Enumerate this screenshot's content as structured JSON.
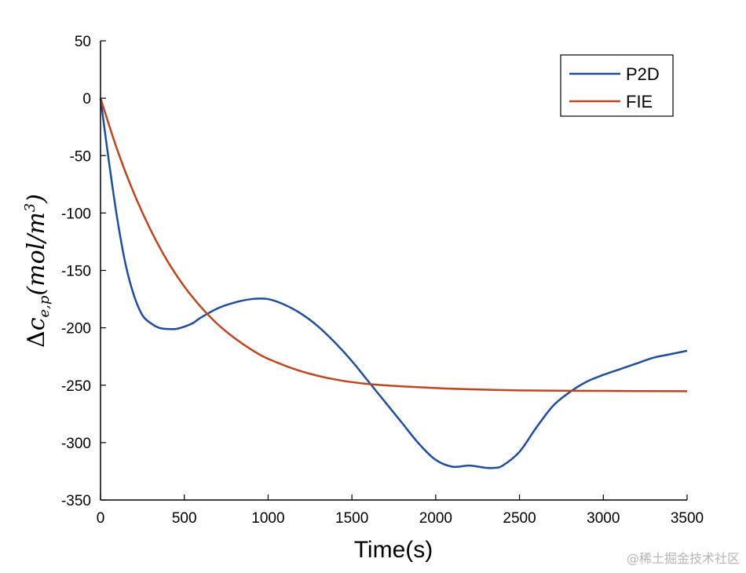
{
  "chart_data": {
    "type": "line",
    "xlabel": "Time(s)",
    "ylabel": {
      "delta": "Δ",
      "var": "c",
      "sub": "e,p",
      "unit_open": "(mol/m",
      "exp": "3",
      "unit_close": ")"
    },
    "xlim": [
      0,
      3500
    ],
    "ylim": [
      -350,
      50
    ],
    "xticks": [
      0,
      500,
      1000,
      1500,
      2000,
      2500,
      3000,
      3500
    ],
    "yticks": [
      -350,
      -300,
      -250,
      -200,
      -150,
      -100,
      -50,
      0,
      50
    ],
    "legend_position": "top-right",
    "series": [
      {
        "name": "P2D",
        "color": "#1f4ea1",
        "x": [
          0,
          50,
          100,
          150,
          200,
          250,
          300,
          350,
          400,
          450,
          500,
          550,
          600,
          700,
          800,
          900,
          1000,
          1100,
          1200,
          1300,
          1400,
          1500,
          1600,
          1700,
          1800,
          1900,
          2000,
          2100,
          2200,
          2300,
          2350,
          2400,
          2500,
          2600,
          2700,
          2800,
          2900,
          3000,
          3100,
          3200,
          3300,
          3400,
          3500
        ],
        "y": [
          0,
          -55,
          -105,
          -145,
          -172,
          -189,
          -196,
          -200,
          -201,
          -201,
          -199,
          -196,
          -191,
          -183,
          -178,
          -175,
          -175,
          -180,
          -188,
          -199,
          -213,
          -229,
          -247,
          -265,
          -283,
          -301,
          -315,
          -321,
          -320,
          -322,
          -322,
          -320,
          -308,
          -287,
          -268,
          -256,
          -247,
          -241,
          -236,
          -231,
          -226,
          -223,
          -220
        ]
      },
      {
        "name": "FIE",
        "color": "#c0441f",
        "x": [
          0,
          100,
          200,
          300,
          400,
          500,
          600,
          700,
          800,
          900,
          1000,
          1200,
          1400,
          1600,
          1800,
          2000,
          2200,
          2500,
          3000,
          3500
        ],
        "y": [
          0,
          -45,
          -83,
          -115,
          -142,
          -164,
          -182,
          -197,
          -209,
          -219,
          -227,
          -238,
          -245,
          -249,
          -251,
          -252.5,
          -253.5,
          -254.5,
          -255,
          -255.2
        ]
      }
    ]
  },
  "watermark": "@稀土掘金技术社区"
}
